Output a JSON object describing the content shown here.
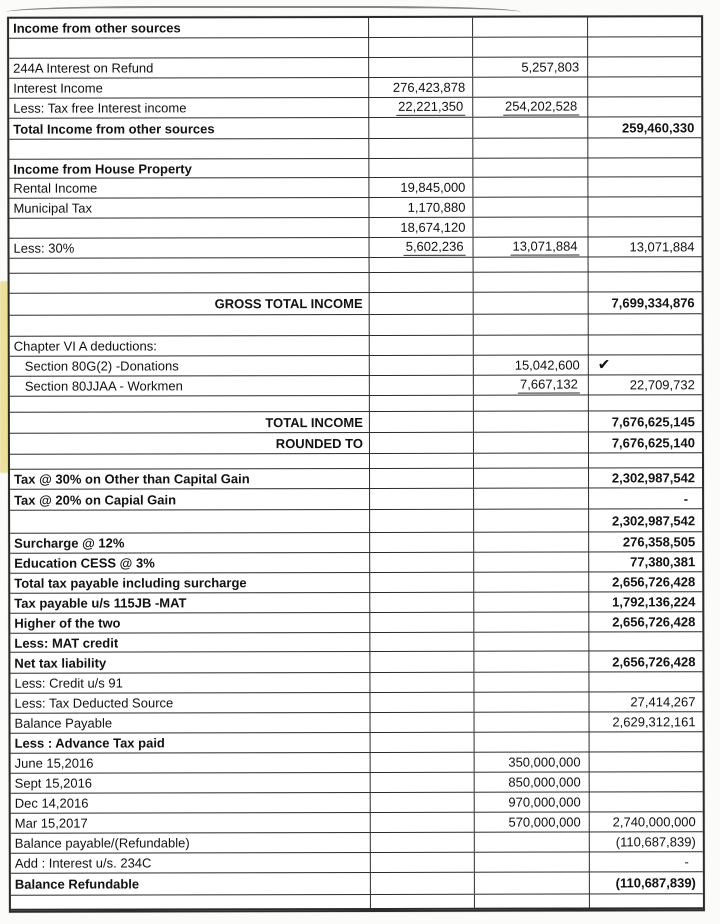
{
  "colors": {
    "line": "#2b2b2b",
    "ink": "#121212",
    "paper": "#fbfbf9",
    "highlight": "#eadd8a"
  },
  "icons": {
    "checkmark": "✔"
  },
  "table": {
    "rows": [
      {
        "l": "Income from other sources",
        "lb": true,
        "h": 20
      },
      {
        "h": 20
      },
      {
        "l": "244A Interest on Refund",
        "c3": "5,257,803",
        "h": 20
      },
      {
        "l": "Interest Income",
        "c2": "276,423,878",
        "h": 20
      },
      {
        "l": "Less:  Tax free Interest income",
        "c2": "22,221,350",
        "u2": true,
        "c3": "254,202,528",
        "u3": true,
        "h": 20
      },
      {
        "l": "Total Income from other sources",
        "lb": true,
        "c4": "259,460,330",
        "h": 21
      },
      {
        "h": 20
      },
      {
        "l": "Income from House Property",
        "lb": true,
        "h": 19
      },
      {
        "l": "Rental Income",
        "c2": "19,845,000",
        "h": 20
      },
      {
        "l": "Municipal Tax",
        "c2": "1,170,880",
        "h": 20
      },
      {
        "c2": "18,674,120",
        "h": 20
      },
      {
        "l": "Less: 30%",
        "c2": "5,602,236",
        "u2": true,
        "c3": "13,071,884",
        "u3": true,
        "c4": "13,071,884",
        "h": 20
      },
      {
        "h": 15
      },
      {
        "h": 20
      },
      {
        "l": "GROSS TOTAL INCOME",
        "lb": true,
        "la": true,
        "c4": "7,699,334,876",
        "b4": true,
        "h": 22
      },
      {
        "h": 21
      },
      {
        "l": "Chapter VI A deductions:",
        "h": 20
      },
      {
        "l": "Section 80G(2) -Donations",
        "ind": true,
        "c3": "15,042,600",
        "c4": "✔",
        "chk": true,
        "h": 20
      },
      {
        "l": "Section 80JJAA - Workmen",
        "ind": true,
        "c3": "7,667,132",
        "u3": true,
        "c4": "22,709,732",
        "h": 20
      },
      {
        "h": 16
      },
      {
        "l": "TOTAL INCOME",
        "lb": true,
        "la": true,
        "c4": "7,676,625,145",
        "b4": true,
        "h": 21
      },
      {
        "l": "ROUNDED TO",
        "lb": true,
        "la": true,
        "c4": "7,676,625,140",
        "b4": true,
        "h": 21
      },
      {
        "h": 15
      },
      {
        "l": "Tax @ 30% on Other than Capital Gain",
        "lb": true,
        "c4": "2,302,987,542",
        "h": 20
      },
      {
        "l": "Tax @ 20% on Capial Gain",
        "lb": true,
        "c4": "-",
        "dash": true,
        "h": 21
      },
      {
        "c4": "2,302,987,542",
        "b4": true,
        "h": 23
      },
      {
        "l": "Surcharge @ 12%",
        "lb": true,
        "c4": "276,358,505",
        "h": 20
      },
      {
        "l": "Education CESS @ 3%",
        "lb": true,
        "c4": "77,380,381",
        "h": 20
      },
      {
        "l": "Total tax payable including surcharge",
        "lb": true,
        "c4": "2,656,726,428",
        "h": 20
      },
      {
        "l": "Tax payable u/s 115JB -MAT",
        "lb": true,
        "c4": "1,792,136,224",
        "h": 20
      },
      {
        "l": "Higher of the two",
        "lb": true,
        "c4": "2,656,726,428",
        "h": 20
      },
      {
        "l": "Less: MAT credit",
        "lb": true,
        "h": 19
      },
      {
        "l": "Net tax liability",
        "lb": true,
        "c4": "2,656,726,428",
        "b4": true,
        "h": 21
      },
      {
        "l": "Less: Credit u/s 91",
        "h": 20
      },
      {
        "l": "Less: Tax Deducted Source",
        "c4": "27,414,267",
        "h": 20
      },
      {
        "l": "Balance Payable",
        "c4": "2,629,312,161",
        "h": 20
      },
      {
        "l": "Less : Advance Tax paid",
        "lb": true,
        "h": 20
      },
      {
        "l": "June 15,2016",
        "c3": "350,000,000",
        "h": 20
      },
      {
        "l": "Sept 15,2016",
        "c3": "850,000,000",
        "h": 20
      },
      {
        "l": "Dec 14,2016",
        "c3": "970,000,000",
        "h": 20
      },
      {
        "l": "Mar 15,2017",
        "c3": "570,000,000",
        "c4": "2,740,000,000",
        "h": 20
      },
      {
        "l": "Balance payable/(Refundable)",
        "c4": "(110,687,839)",
        "h": 20
      },
      {
        "l": "Add : Interest u/s. 234C",
        "c4": "-",
        "dash": true,
        "h": 20
      },
      {
        "l": "Balance Refundable",
        "lb": true,
        "c4": "(110,687,839)",
        "b4": true,
        "h": 22
      },
      {
        "h": 15
      }
    ]
  }
}
